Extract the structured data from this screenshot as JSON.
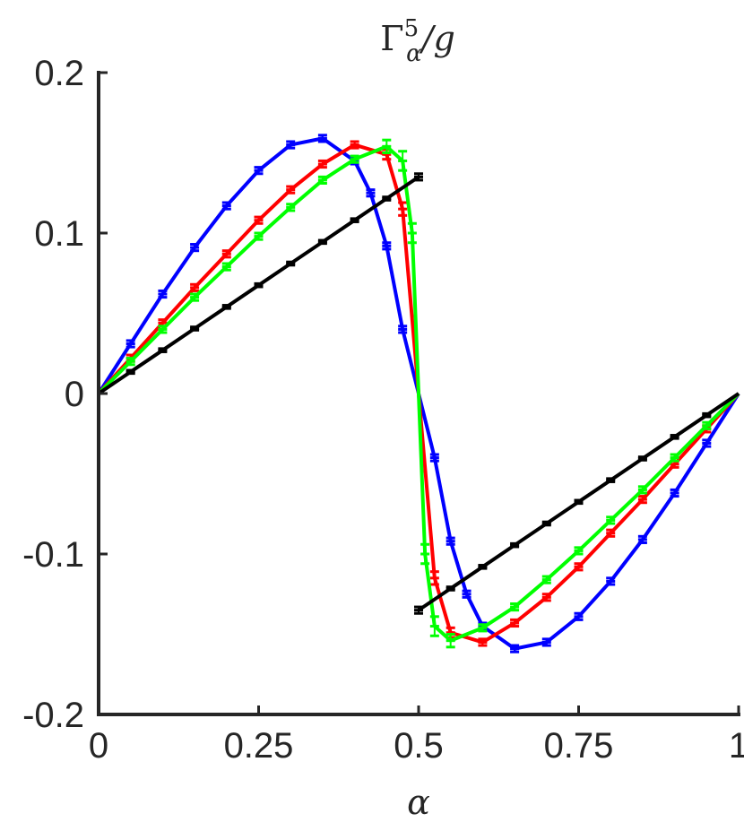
{
  "chart_data": {
    "type": "line",
    "title": "Γ⁵α/g",
    "title_parts": {
      "base": "Γ",
      "sup": "5",
      "sub": "α",
      "rest": "/g"
    },
    "xlabel": "α",
    "ylabel": "",
    "xlim": [
      0,
      1
    ],
    "ylim": [
      -0.2,
      0.2
    ],
    "xticks": [
      0,
      0.25,
      0.5,
      0.75,
      1
    ],
    "xtick_labels": [
      "0",
      "0.25",
      "0.5",
      "0.75",
      "1"
    ],
    "yticks": [
      -0.2,
      -0.1,
      0,
      0.1,
      0.2
    ],
    "ytick_labels": [
      "-0.2",
      "-0.1",
      "0",
      "0.1",
      "0.2"
    ],
    "grid": false,
    "legend": "none",
    "series": [
      {
        "color": "#0000ff",
        "segments": [
          [
            [
              0,
              0
            ],
            [
              0.05,
              0.031
            ],
            [
              0.1,
              0.062
            ],
            [
              0.15,
              0.091
            ],
            [
              0.2,
              0.117
            ],
            [
              0.25,
              0.139
            ],
            [
              0.3,
              0.155
            ],
            [
              0.35,
              0.159
            ],
            [
              0.4,
              0.145
            ],
            [
              0.425,
              0.125
            ],
            [
              0.45,
              0.092
            ],
            [
              0.475,
              0.04
            ],
            [
              0.5,
              0
            ],
            [
              0.525,
              -0.04
            ],
            [
              0.55,
              -0.092
            ],
            [
              0.575,
              -0.125
            ],
            [
              0.6,
              -0.145
            ],
            [
              0.65,
              -0.159
            ],
            [
              0.7,
              -0.155
            ],
            [
              0.75,
              -0.139
            ],
            [
              0.8,
              -0.117
            ],
            [
              0.85,
              -0.091
            ],
            [
              0.9,
              -0.062
            ],
            [
              0.95,
              -0.031
            ],
            [
              1,
              0
            ]
          ]
        ],
        "errors": [
          0,
          0.002,
          0.002,
          0.002,
          0.002,
          0.002,
          0.002,
          0.002,
          0.002,
          0.002,
          0.002,
          0.002,
          0,
          0.002,
          0.002,
          0.002,
          0.002,
          0.002,
          0.002,
          0.002,
          0.002,
          0.002,
          0.002,
          0.002,
          0
        ]
      },
      {
        "color": "#ff0000",
        "segments": [
          [
            [
              0,
              0
            ],
            [
              0.05,
              0.022
            ],
            [
              0.1,
              0.044
            ],
            [
              0.15,
              0.066
            ],
            [
              0.2,
              0.087
            ],
            [
              0.25,
              0.108
            ],
            [
              0.3,
              0.127
            ],
            [
              0.35,
              0.143
            ],
            [
              0.4,
              0.155
            ],
            [
              0.45,
              0.149
            ],
            [
              0.475,
              0.115
            ],
            [
              0.5,
              0
            ],
            [
              0.525,
              -0.115
            ],
            [
              0.55,
              -0.149
            ],
            [
              0.6,
              -0.155
            ],
            [
              0.65,
              -0.143
            ],
            [
              0.7,
              -0.127
            ],
            [
              0.75,
              -0.108
            ],
            [
              0.8,
              -0.087
            ],
            [
              0.85,
              -0.066
            ],
            [
              0.9,
              -0.044
            ],
            [
              0.95,
              -0.022
            ],
            [
              1,
              0
            ]
          ]
        ],
        "errors": [
          0,
          0.002,
          0.002,
          0.002,
          0.002,
          0.002,
          0.002,
          0.002,
          0.002,
          0.003,
          0.004,
          0,
          0.004,
          0.003,
          0.002,
          0.002,
          0.002,
          0.002,
          0.002,
          0.002,
          0.002,
          0.002,
          0
        ]
      },
      {
        "color": "#00ff00",
        "segments": [
          [
            [
              0,
              0
            ],
            [
              0.05,
              0.02
            ],
            [
              0.1,
              0.04
            ],
            [
              0.15,
              0.06
            ],
            [
              0.2,
              0.079
            ],
            [
              0.25,
              0.098
            ],
            [
              0.3,
              0.116
            ],
            [
              0.35,
              0.133
            ],
            [
              0.4,
              0.146
            ],
            [
              0.45,
              0.154
            ],
            [
              0.475,
              0.145
            ],
            [
              0.49,
              0.1
            ],
            [
              0.5,
              0
            ],
            [
              0.51,
              -0.1
            ],
            [
              0.525,
              -0.145
            ],
            [
              0.55,
              -0.154
            ],
            [
              0.6,
              -0.146
            ],
            [
              0.65,
              -0.133
            ],
            [
              0.7,
              -0.116
            ],
            [
              0.75,
              -0.098
            ],
            [
              0.8,
              -0.079
            ],
            [
              0.85,
              -0.06
            ],
            [
              0.9,
              -0.04
            ],
            [
              0.95,
              -0.02
            ],
            [
              1,
              0
            ]
          ]
        ],
        "errors": [
          0,
          0.002,
          0.002,
          0.002,
          0.002,
          0.002,
          0.002,
          0.002,
          0.002,
          0.004,
          0.006,
          0.006,
          0,
          0.006,
          0.006,
          0.004,
          0.002,
          0.002,
          0.002,
          0.002,
          0.002,
          0.002,
          0.002,
          0.002,
          0
        ]
      },
      {
        "color": "#000000",
        "segments": [
          [
            [
              0,
              0
            ],
            [
              0.05,
              0.0135
            ],
            [
              0.1,
              0.027
            ],
            [
              0.15,
              0.0405
            ],
            [
              0.2,
              0.054
            ],
            [
              0.25,
              0.0675
            ],
            [
              0.3,
              0.081
            ],
            [
              0.35,
              0.0945
            ],
            [
              0.4,
              0.108
            ],
            [
              0.45,
              0.1215
            ],
            [
              0.5,
              0.135
            ]
          ],
          [
            [
              0.5,
              -0.135
            ],
            [
              0.55,
              -0.1215
            ],
            [
              0.6,
              -0.108
            ],
            [
              0.65,
              -0.0945
            ],
            [
              0.7,
              -0.081
            ],
            [
              0.75,
              -0.0675
            ],
            [
              0.8,
              -0.054
            ],
            [
              0.85,
              -0.0405
            ],
            [
              0.9,
              -0.027
            ],
            [
              0.95,
              -0.0135
            ],
            [
              1,
              0
            ]
          ]
        ],
        "errors": [
          0,
          0.001,
          0.001,
          0.001,
          0.001,
          0.001,
          0.001,
          0.001,
          0.001,
          0.001,
          0.002,
          0.002,
          0.001,
          0.001,
          0.001,
          0.001,
          0.001,
          0.001,
          0.001,
          0.001,
          0.001,
          0
        ]
      }
    ]
  }
}
